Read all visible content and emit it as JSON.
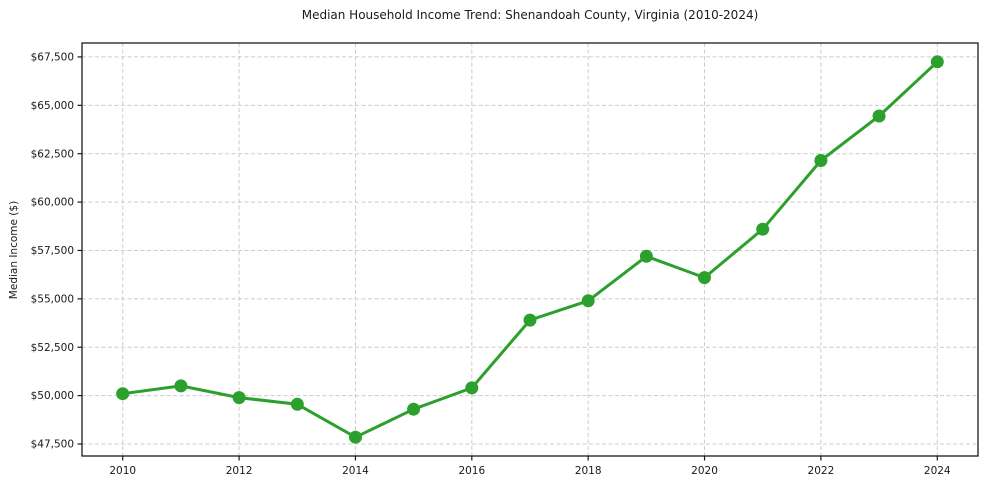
{
  "chart_data": {
    "type": "line",
    "title": "Median Household Income Trend: Shenandoah County, Virginia (2010-2024)",
    "xlabel": "",
    "ylabel": "Median Income ($)",
    "x": [
      2010,
      2011,
      2012,
      2013,
      2014,
      2015,
      2016,
      2017,
      2018,
      2019,
      2020,
      2021,
      2022,
      2023,
      2024
    ],
    "series": [
      {
        "name": "Median Household Income",
        "values": [
          50100,
          50500,
          49900,
          49550,
          47850,
          49300,
          50400,
          53900,
          54900,
          57200,
          56100,
          58600,
          62150,
          64450,
          67250
        ]
      }
    ],
    "xlim": [
      2009.3,
      2024.7
    ],
    "ylim": [
      46880,
      68220
    ],
    "xticks": [
      2010,
      2012,
      2014,
      2016,
      2018,
      2020,
      2022,
      2024
    ],
    "xtick_labels": [
      "2010",
      "2012",
      "2014",
      "2016",
      "2018",
      "2020",
      "2022",
      "2024"
    ],
    "yticks": [
      47500,
      50000,
      52500,
      55000,
      57500,
      60000,
      62500,
      65000,
      67500
    ],
    "ytick_labels": [
      "$47,500",
      "$50,000",
      "$52,500",
      "$55,000",
      "$57,500",
      "$60,000",
      "$62,500",
      "$65,000",
      "$67,500"
    ],
    "grid": true,
    "grid_style": "dashed",
    "legend": "none",
    "colors": {
      "line": "#2ca02c",
      "marker": "#2ca02c",
      "grid": "#cccccc",
      "spine": "#1a1a1a",
      "background": "#ffffff"
    }
  }
}
